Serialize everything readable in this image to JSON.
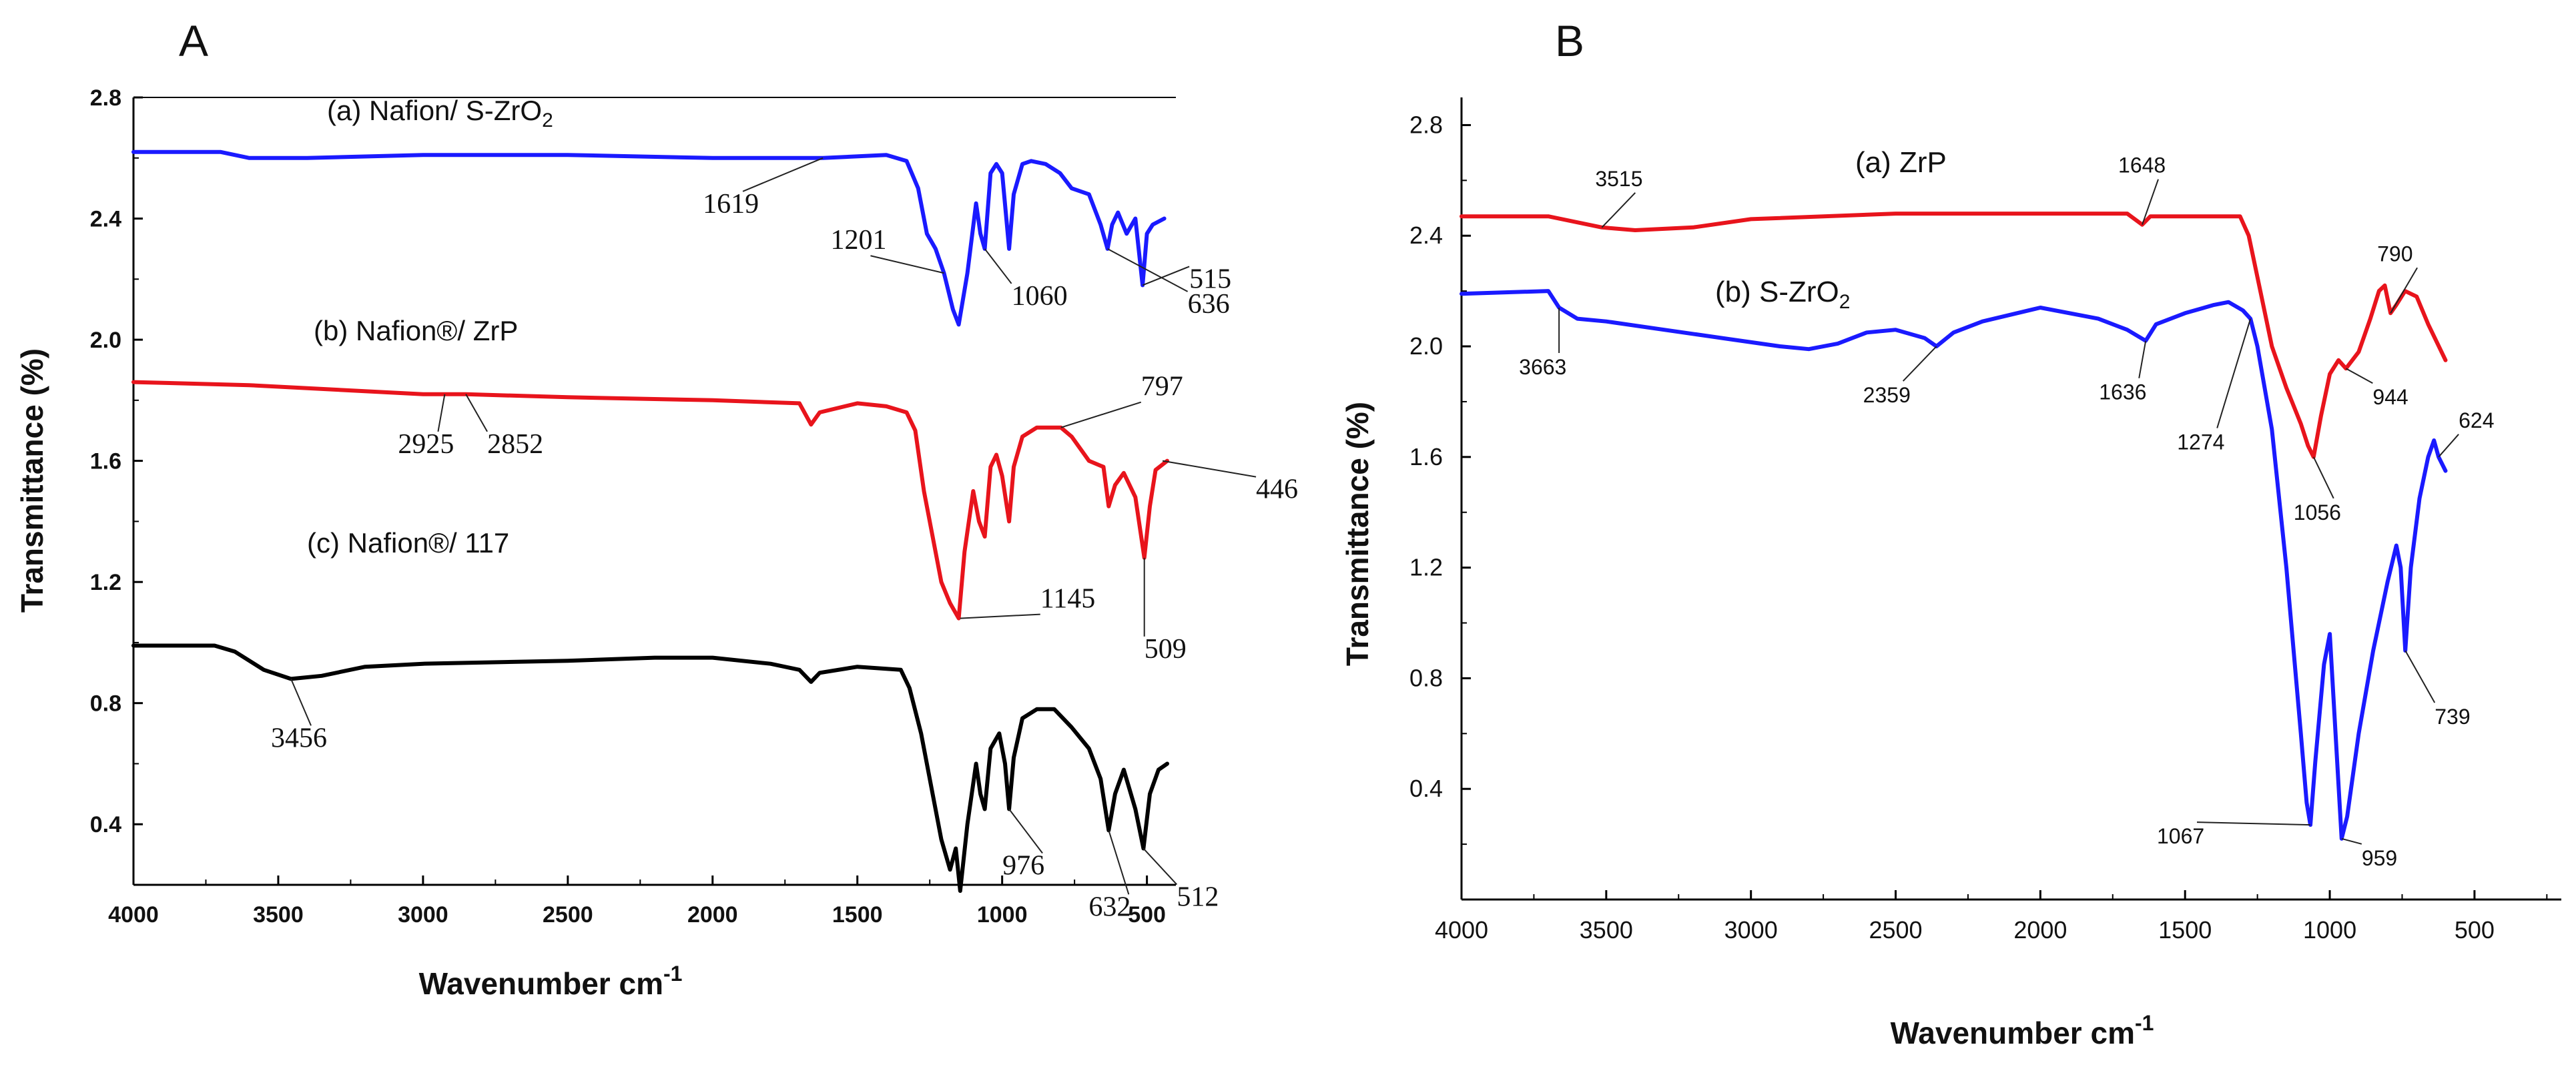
{
  "colors": {
    "series_a": "#1a1aff",
    "series_b": "#e8141c",
    "series_c": "#000000",
    "axis": "#000000"
  },
  "chart_data": [
    {
      "type": "line",
      "panel_label": "A",
      "title": "",
      "xlabel": "Wavenumber cm",
      "xlabel_sup": "-1",
      "ylabel": "Transmittance (%)",
      "xlim": [
        4000,
        400
      ],
      "ylim": [
        0.2,
        2.8
      ],
      "xticks": [
        "4000",
        "3500",
        "3000",
        "2500",
        "2000",
        "1500",
        "1000",
        "500"
      ],
      "yticks": [
        "0.4",
        "0.8",
        "1.2",
        "1.6",
        "2.0",
        "2.4",
        "2.8"
      ],
      "series": [
        {
          "name": "(a) Nafion/ S-ZrO",
          "name_sub": "2",
          "color": "#1a1aff",
          "points": [
            [
              4000,
              2.62
            ],
            [
              3700,
              2.62
            ],
            [
              3600,
              2.6
            ],
            [
              3400,
              2.6
            ],
            [
              3000,
              2.61
            ],
            [
              2500,
              2.61
            ],
            [
              2000,
              2.6
            ],
            [
              1619,
              2.6
            ],
            [
              1400,
              2.61
            ],
            [
              1330,
              2.59
            ],
            [
              1290,
              2.5
            ],
            [
              1260,
              2.35
            ],
            [
              1230,
              2.3
            ],
            [
              1201,
              2.22
            ],
            [
              1170,
              2.1
            ],
            [
              1150,
              2.05
            ],
            [
              1120,
              2.22
            ],
            [
              1090,
              2.45
            ],
            [
              1075,
              2.35
            ],
            [
              1060,
              2.3
            ],
            [
              1040,
              2.55
            ],
            [
              1020,
              2.58
            ],
            [
              1000,
              2.55
            ],
            [
              976,
              2.3
            ],
            [
              960,
              2.48
            ],
            [
              930,
              2.58
            ],
            [
              900,
              2.59
            ],
            [
              850,
              2.58
            ],
            [
              800,
              2.55
            ],
            [
              760,
              2.5
            ],
            [
              700,
              2.48
            ],
            [
              660,
              2.38
            ],
            [
              636,
              2.3
            ],
            [
              620,
              2.38
            ],
            [
              600,
              2.42
            ],
            [
              570,
              2.35
            ],
            [
              540,
              2.4
            ],
            [
              515,
              2.18
            ],
            [
              500,
              2.35
            ],
            [
              480,
              2.38
            ],
            [
              440,
              2.4
            ]
          ]
        },
        {
          "name": "(b) Nafion®/  ZrP",
          "color": "#e8141c",
          "points": [
            [
              4000,
              1.86
            ],
            [
              3600,
              1.85
            ],
            [
              3000,
              1.82
            ],
            [
              2925,
              1.82
            ],
            [
              2852,
              1.82
            ],
            [
              2500,
              1.81
            ],
            [
              2000,
              1.8
            ],
            [
              1700,
              1.79
            ],
            [
              1660,
              1.72
            ],
            [
              1630,
              1.76
            ],
            [
              1500,
              1.79
            ],
            [
              1400,
              1.78
            ],
            [
              1330,
              1.76
            ],
            [
              1300,
              1.7
            ],
            [
              1270,
              1.5
            ],
            [
              1240,
              1.35
            ],
            [
              1210,
              1.2
            ],
            [
              1180,
              1.13
            ],
            [
              1150,
              1.08
            ],
            [
              1130,
              1.3
            ],
            [
              1100,
              1.5
            ],
            [
              1080,
              1.4
            ],
            [
              1060,
              1.35
            ],
            [
              1040,
              1.58
            ],
            [
              1020,
              1.62
            ],
            [
              1000,
              1.55
            ],
            [
              976,
              1.4
            ],
            [
              960,
              1.58
            ],
            [
              930,
              1.68
            ],
            [
              880,
              1.71
            ],
            [
              797,
              1.71
            ],
            [
              760,
              1.68
            ],
            [
              700,
              1.6
            ],
            [
              650,
              1.58
            ],
            [
              632,
              1.45
            ],
            [
              610,
              1.52
            ],
            [
              580,
              1.56
            ],
            [
              540,
              1.48
            ],
            [
              509,
              1.28
            ],
            [
              490,
              1.45
            ],
            [
              470,
              1.57
            ],
            [
              430,
              1.6
            ]
          ]
        },
        {
          "name": "(c) Nafion®/ 117",
          "color": "#000000",
          "points": [
            [
              4000,
              0.99
            ],
            [
              3720,
              0.99
            ],
            [
              3650,
              0.97
            ],
            [
              3550,
              0.91
            ],
            [
              3456,
              0.88
            ],
            [
              3350,
              0.89
            ],
            [
              3200,
              0.92
            ],
            [
              3000,
              0.93
            ],
            [
              2500,
              0.94
            ],
            [
              2200,
              0.95
            ],
            [
              2000,
              0.95
            ],
            [
              1800,
              0.93
            ],
            [
              1700,
              0.91
            ],
            [
              1660,
              0.87
            ],
            [
              1630,
              0.9
            ],
            [
              1500,
              0.92
            ],
            [
              1350,
              0.91
            ],
            [
              1320,
              0.85
            ],
            [
              1280,
              0.7
            ],
            [
              1240,
              0.5
            ],
            [
              1210,
              0.35
            ],
            [
              1180,
              0.25
            ],
            [
              1160,
              0.32
            ],
            [
              1145,
              0.18
            ],
            [
              1120,
              0.4
            ],
            [
              1090,
              0.6
            ],
            [
              1075,
              0.5
            ],
            [
              1060,
              0.45
            ],
            [
              1040,
              0.65
            ],
            [
              1010,
              0.7
            ],
            [
              990,
              0.6
            ],
            [
              976,
              0.45
            ],
            [
              960,
              0.62
            ],
            [
              930,
              0.75
            ],
            [
              880,
              0.78
            ],
            [
              820,
              0.78
            ],
            [
              760,
              0.72
            ],
            [
              700,
              0.65
            ],
            [
              660,
              0.55
            ],
            [
              632,
              0.38
            ],
            [
              610,
              0.5
            ],
            [
              580,
              0.58
            ],
            [
              540,
              0.45
            ],
            [
              512,
              0.32
            ],
            [
              490,
              0.5
            ],
            [
              460,
              0.58
            ],
            [
              430,
              0.6
            ]
          ]
        }
      ],
      "annotations": [
        {
          "text": "1619",
          "x": 1619,
          "y": 2.6,
          "series": 0
        },
        {
          "text": "1201",
          "x": 1201,
          "y": 2.22,
          "series": 0
        },
        {
          "text": "1060",
          "x": 1060,
          "y": 2.3,
          "series": 0
        },
        {
          "text": "515",
          "x": 515,
          "y": 2.18,
          "series": 0
        },
        {
          "text": "636",
          "x": 636,
          "y": 2.3,
          "series": 0
        },
        {
          "text": "2925",
          "x": 2925,
          "y": 1.82,
          "series": 1
        },
        {
          "text": "2852",
          "x": 2852,
          "y": 1.82,
          "series": 1
        },
        {
          "text": "797",
          "x": 797,
          "y": 1.71,
          "series": 1
        },
        {
          "text": "446",
          "x": 446,
          "y": 1.6,
          "series": 1
        },
        {
          "text": "1145",
          "x": 1145,
          "y": 1.08,
          "series": 1
        },
        {
          "text": "509",
          "x": 509,
          "y": 1.28,
          "series": 1
        },
        {
          "text": "3456",
          "x": 3456,
          "y": 0.88,
          "series": 2
        },
        {
          "text": "976",
          "x": 976,
          "y": 0.45,
          "series": 2
        },
        {
          "text": "632",
          "x": 632,
          "y": 0.38,
          "series": 2
        },
        {
          "text": "512",
          "x": 512,
          "y": 0.32,
          "series": 2
        }
      ]
    },
    {
      "type": "line",
      "panel_label": "B",
      "title": "",
      "xlabel": "Wavenumber cm",
      "xlabel_sup": "-1",
      "ylabel": "Transmittance (%)",
      "xlim": [
        4000,
        200
      ],
      "ylim": [
        0.0,
        2.9
      ],
      "xticks": [
        "4000",
        "3500",
        "3000",
        "2500",
        "2000",
        "1500",
        "1000",
        "500"
      ],
      "yticks": [
        "0.4",
        "0.8",
        "1.2",
        "1.6",
        "2.0",
        "2.4",
        "2.8"
      ],
      "series": [
        {
          "name": "(a)  ZrP",
          "color": "#e8141c",
          "points": [
            [
              4000,
              2.47
            ],
            [
              3700,
              2.47
            ],
            [
              3515,
              2.43
            ],
            [
              3400,
              2.42
            ],
            [
              3200,
              2.43
            ],
            [
              3000,
              2.46
            ],
            [
              2500,
              2.48
            ],
            [
              2000,
              2.48
            ],
            [
              1700,
              2.48
            ],
            [
              1648,
              2.44
            ],
            [
              1620,
              2.47
            ],
            [
              1500,
              2.47
            ],
            [
              1310,
              2.47
            ],
            [
              1280,
              2.4
            ],
            [
              1240,
              2.2
            ],
            [
              1200,
              2.0
            ],
            [
              1150,
              1.85
            ],
            [
              1100,
              1.72
            ],
            [
              1075,
              1.64
            ],
            [
              1056,
              1.6
            ],
            [
              1030,
              1.75
            ],
            [
              1000,
              1.9
            ],
            [
              970,
              1.95
            ],
            [
              944,
              1.92
            ],
            [
              900,
              1.98
            ],
            [
              860,
              2.1
            ],
            [
              830,
              2.2
            ],
            [
              810,
              2.22
            ],
            [
              790,
              2.12
            ],
            [
              770,
              2.15
            ],
            [
              740,
              2.2
            ],
            [
              700,
              2.18
            ],
            [
              660,
              2.08
            ],
            [
              600,
              1.95
            ]
          ]
        },
        {
          "name": "(b) S-ZrO",
          "name_sub": "2",
          "color": "#1a1aff",
          "points": [
            [
              4000,
              2.19
            ],
            [
              3700,
              2.2
            ],
            [
              3663,
              2.14
            ],
            [
              3600,
              2.1
            ],
            [
              3500,
              2.09
            ],
            [
              3300,
              2.06
            ],
            [
              3100,
              2.03
            ],
            [
              2900,
              2.0
            ],
            [
              2800,
              1.99
            ],
            [
              2700,
              2.01
            ],
            [
              2600,
              2.05
            ],
            [
              2500,
              2.06
            ],
            [
              2400,
              2.03
            ],
            [
              2359,
              2.0
            ],
            [
              2300,
              2.05
            ],
            [
              2200,
              2.09
            ],
            [
              2000,
              2.14
            ],
            [
              1800,
              2.1
            ],
            [
              1700,
              2.06
            ],
            [
              1636,
              2.02
            ],
            [
              1600,
              2.08
            ],
            [
              1500,
              2.12
            ],
            [
              1400,
              2.15
            ],
            [
              1350,
              2.16
            ],
            [
              1300,
              2.13
            ],
            [
              1274,
              2.1
            ],
            [
              1250,
              2.0
            ],
            [
              1200,
              1.7
            ],
            [
              1150,
              1.2
            ],
            [
              1100,
              0.6
            ],
            [
              1080,
              0.35
            ],
            [
              1067,
              0.27
            ],
            [
              1050,
              0.5
            ],
            [
              1020,
              0.85
            ],
            [
              1000,
              0.96
            ],
            [
              980,
              0.6
            ],
            [
              959,
              0.22
            ],
            [
              940,
              0.3
            ],
            [
              900,
              0.6
            ],
            [
              850,
              0.9
            ],
            [
              800,
              1.15
            ],
            [
              770,
              1.28
            ],
            [
              755,
              1.2
            ],
            [
              739,
              0.9
            ],
            [
              720,
              1.2
            ],
            [
              690,
              1.45
            ],
            [
              660,
              1.6
            ],
            [
              640,
              1.66
            ],
            [
              624,
              1.6
            ],
            [
              600,
              1.55
            ]
          ]
        }
      ],
      "annotations": [
        {
          "text": "3515",
          "x": 3515,
          "y": 2.43,
          "series": 0
        },
        {
          "text": "1648",
          "x": 1648,
          "y": 2.44,
          "series": 0
        },
        {
          "text": "790",
          "x": 790,
          "y": 2.12,
          "series": 0
        },
        {
          "text": "944",
          "x": 944,
          "y": 1.92,
          "series": 0
        },
        {
          "text": "1056",
          "x": 1056,
          "y": 1.6,
          "series": 0
        },
        {
          "text": "3663",
          "x": 3663,
          "y": 2.14,
          "series": 1
        },
        {
          "text": "2359",
          "x": 2359,
          "y": 2.0,
          "series": 1
        },
        {
          "text": "1636",
          "x": 1636,
          "y": 2.02,
          "series": 1
        },
        {
          "text": "1274",
          "x": 1274,
          "y": 2.1,
          "series": 1
        },
        {
          "text": "624",
          "x": 624,
          "y": 1.6,
          "series": 1
        },
        {
          "text": "739",
          "x": 739,
          "y": 0.9,
          "series": 1
        },
        {
          "text": "1067",
          "x": 1067,
          "y": 0.27,
          "series": 1
        },
        {
          "text": "959",
          "x": 959,
          "y": 0.22,
          "series": 1
        }
      ]
    }
  ]
}
